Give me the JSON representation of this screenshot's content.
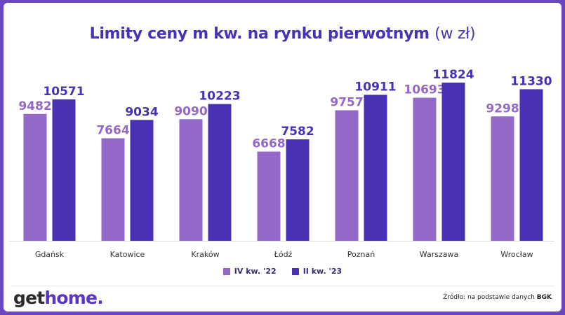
{
  "title": {
    "main": "Limity ceny m kw. na rynku pierwotnym",
    "suffix": "(w zł)"
  },
  "chart_data": {
    "type": "bar",
    "title": "Limity ceny m kw. na rynku pierwotnym (w zł)",
    "categories": [
      "Gdańsk",
      "Katowice",
      "Kraków",
      "Łódź",
      "Poznań",
      "Warszawa",
      "Wrocław"
    ],
    "series": [
      {
        "name": "IV kw. '22",
        "values": [
          9482,
          7664,
          9090,
          6668,
          9757,
          10693,
          9298
        ],
        "color": "#9368c6"
      },
      {
        "name": "II kw. '23",
        "values": [
          10571,
          9034,
          10223,
          7582,
          10911,
          11824,
          11330
        ],
        "color": "#4a31b3"
      }
    ],
    "ylim": [
      0,
      12500
    ],
    "grid": false,
    "legend_position": "bottom-center",
    "data_labels": true
  },
  "logo": {
    "get": "get",
    "home": "home",
    "dot": "."
  },
  "source": {
    "prefix": "Źródło: na podstawie danych",
    "org": "BGK"
  }
}
